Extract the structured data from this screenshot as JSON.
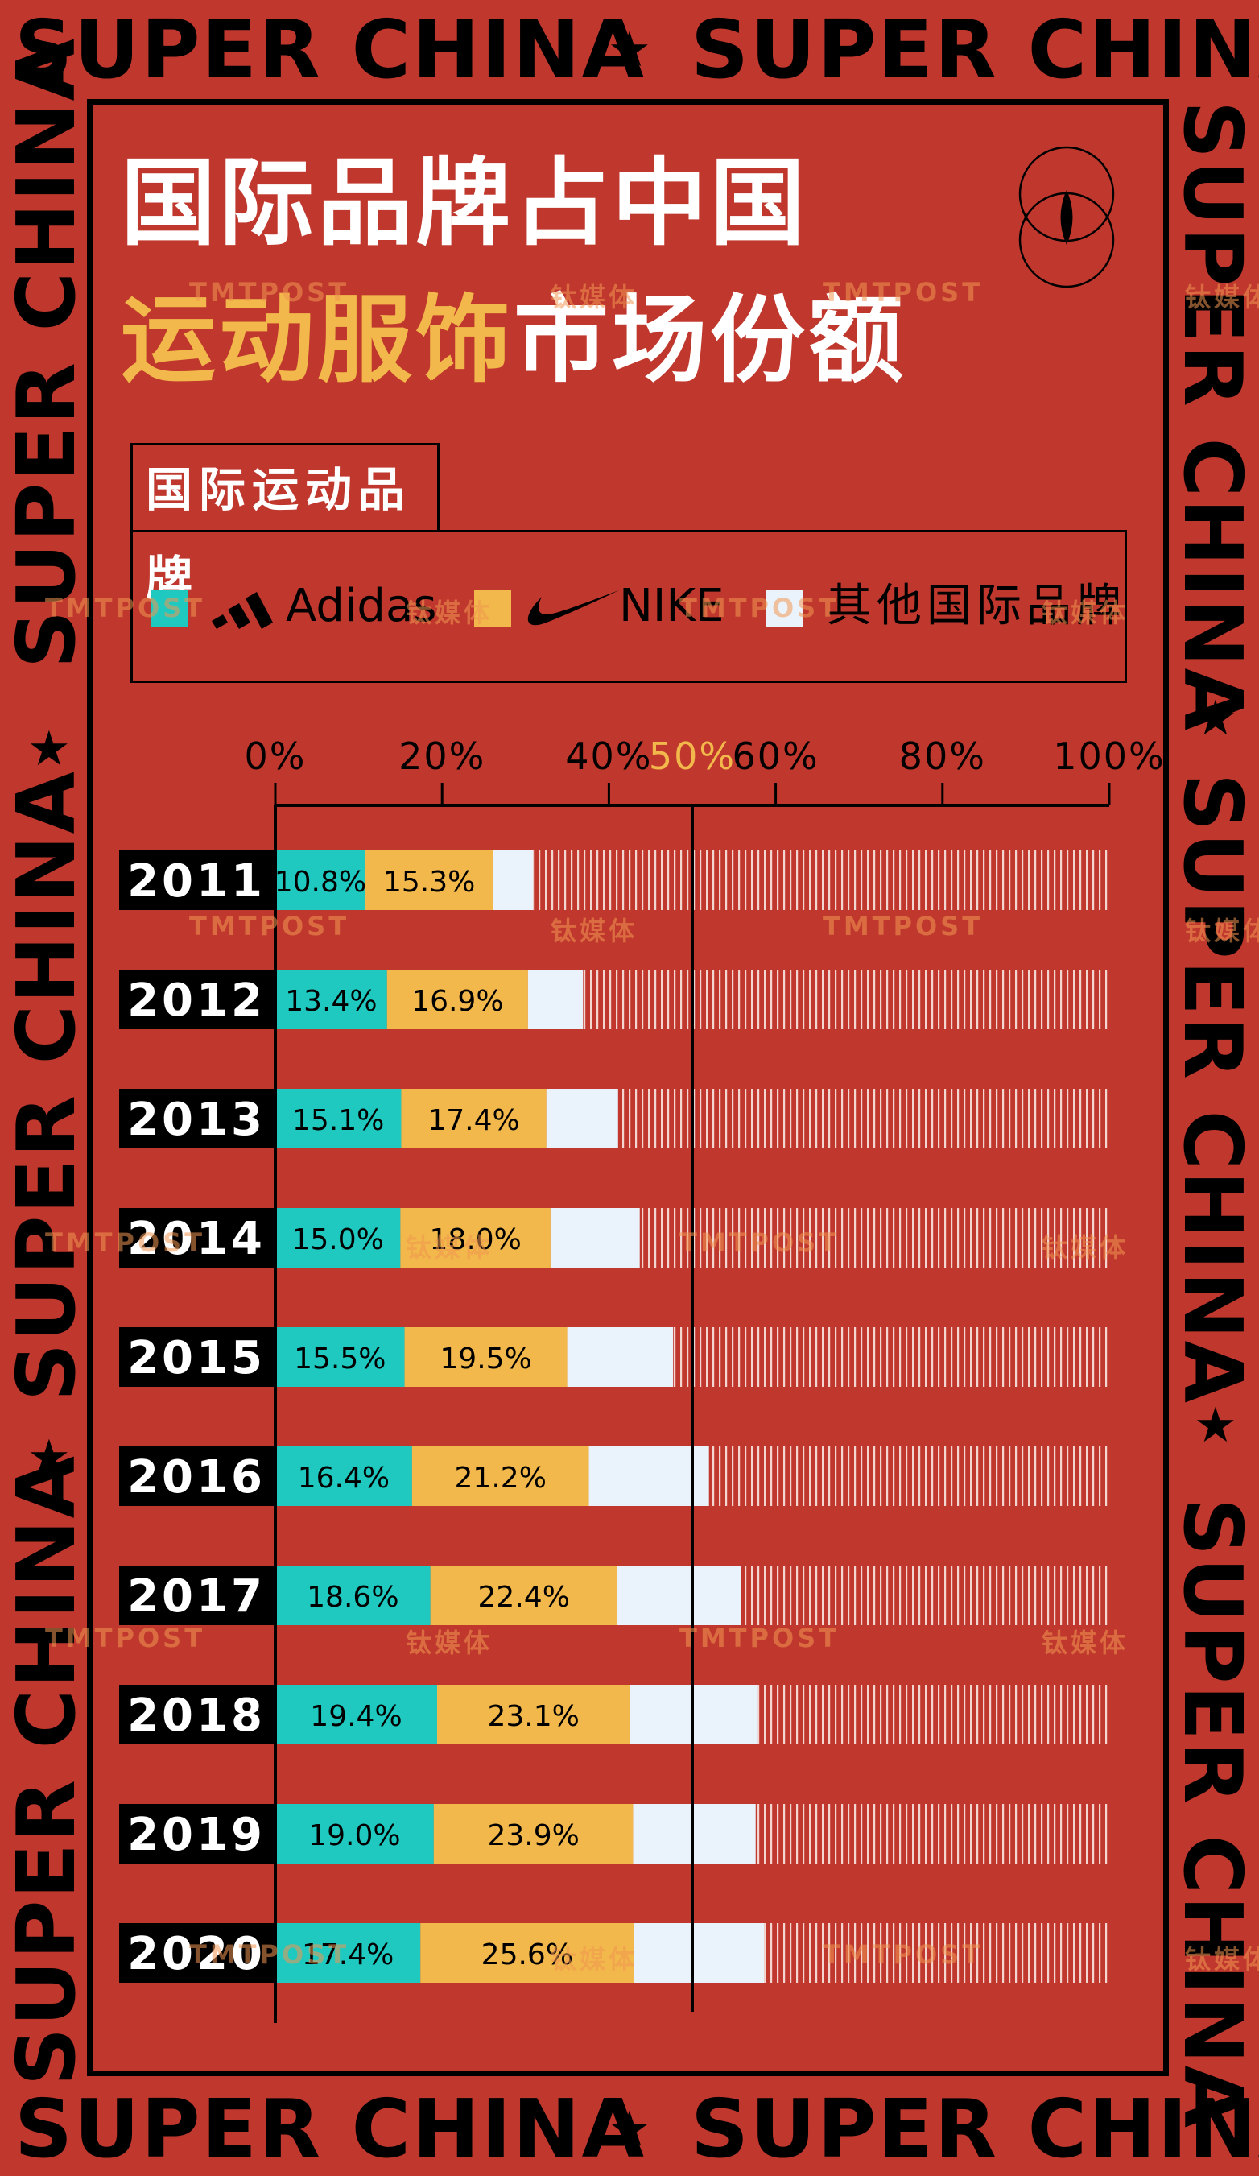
{
  "frame": {
    "text": "SUPER CHINA",
    "star": "★"
  },
  "title": {
    "line1": "国际品牌占中国",
    "line2_highlight": "运动服饰",
    "line2_rest": "市场份额"
  },
  "legend": {
    "heading": "国际运动品牌",
    "items": [
      {
        "label": "Adidas",
        "color": "#1FC9C0",
        "icon": "adidas-logo-icon"
      },
      {
        "label": "NIKE",
        "color": "#F2B84B",
        "icon": "nike-swoosh-icon"
      },
      {
        "label": "其他国际品牌",
        "color": "#EAF3FB",
        "icon": ""
      }
    ]
  },
  "watermarks": [
    "TMTPOST",
    "钛媒体"
  ],
  "chart_data": {
    "type": "bar",
    "orientation": "horizontal-stacked",
    "xlim": [
      0,
      100
    ],
    "x_ticks": [
      "0%",
      "20%",
      "40%",
      "60%",
      "80%",
      "100%"
    ],
    "reference_line": {
      "value": 50,
      "label": "50%",
      "color": "#F2B84B"
    },
    "categories": [
      "2011",
      "2012",
      "2013",
      "2014",
      "2015",
      "2016",
      "2017",
      "2018",
      "2019",
      "2020"
    ],
    "series": [
      {
        "name": "Adidas",
        "color": "#1FC9C0",
        "values": [
          10.8,
          13.4,
          15.1,
          15.0,
          15.5,
          16.4,
          18.6,
          19.4,
          19.0,
          17.4
        ],
        "labels": [
          "10.8%",
          "13.4%",
          "15.1%",
          "15.0%",
          "15.5%",
          "16.4%",
          "18.6%",
          "19.4%",
          "19.0%",
          "17.4%"
        ]
      },
      {
        "name": "NIKE",
        "color": "#F2B84B",
        "values": [
          15.3,
          16.9,
          17.4,
          18.0,
          19.5,
          21.2,
          22.4,
          23.1,
          23.9,
          25.6
        ],
        "labels": [
          "15.3%",
          "16.9%",
          "17.4%",
          "18.0%",
          "19.5%",
          "21.2%",
          "22.4%",
          "23.1%",
          "23.9%",
          "25.6%"
        ]
      },
      {
        "name": "其他国际品牌",
        "color": "#EAF3FB",
        "values": [
          4.8,
          6.6,
          8.6,
          10.7,
          12.7,
          14.4,
          14.8,
          15.4,
          14.7,
          15.6
        ]
      }
    ],
    "remainder_color": "#C0382D"
  }
}
